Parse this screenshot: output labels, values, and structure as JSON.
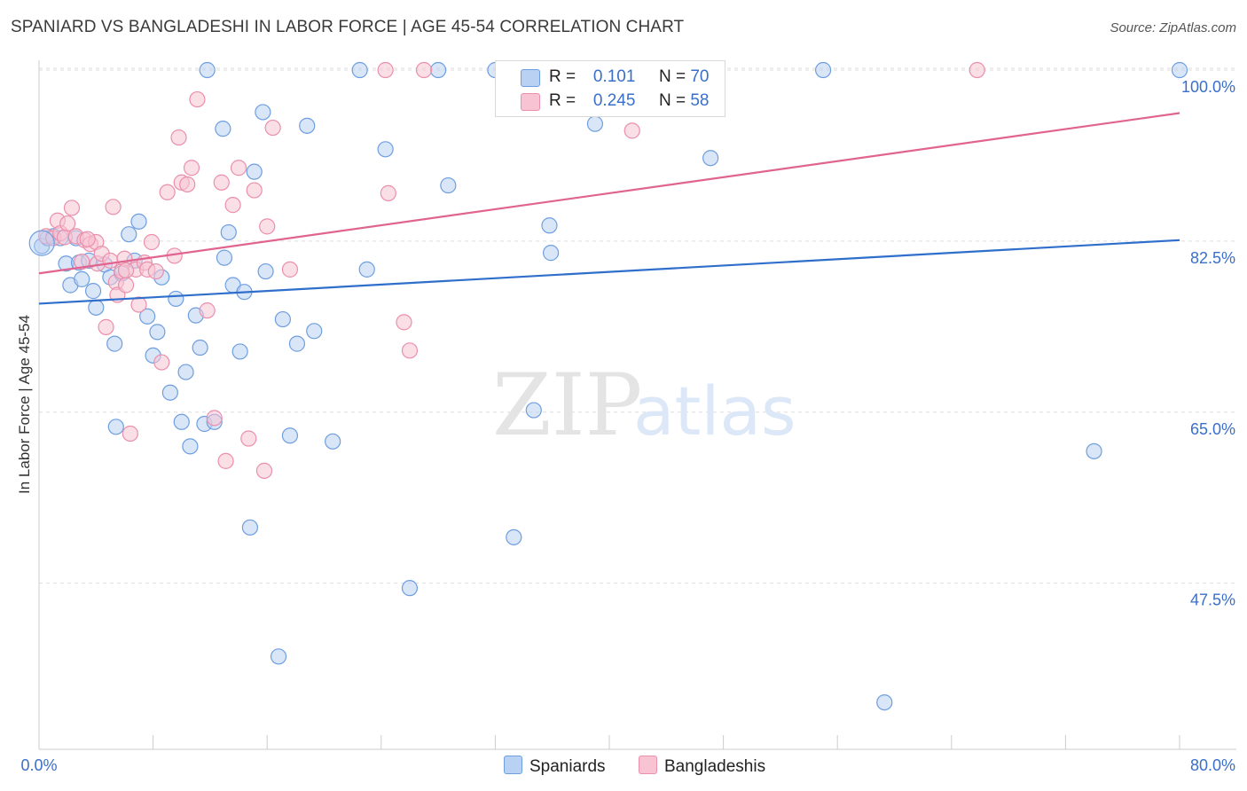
{
  "header": {
    "title": "SPANIARD VS BANGLADESHI IN LABOR FORCE | AGE 45-54 CORRELATION CHART",
    "source": "Source: ZipAtlas.com"
  },
  "watermark": {
    "zip": "ZIP",
    "atlas": "atlas"
  },
  "legend": {
    "r_label": "R =",
    "n_label": "N =",
    "rows": [
      {
        "r": "0.101",
        "n": "70"
      },
      {
        "r": "0.245",
        "n": "58"
      }
    ],
    "bottom": [
      "Spaniards",
      "Bangladeshis"
    ]
  },
  "colors": {
    "spaniards_fill": "#b9d1f3",
    "spaniards_stroke": "#6e9ee0",
    "spaniards_line": "#2f6fcb",
    "bangladeshis_fill": "#f8c4d4",
    "bangladeshis_stroke": "#ea8fac",
    "bangladeshis_line": "#e0648f",
    "tick_label": "#3a6fc9",
    "grid": "#dddddd"
  },
  "chart_data": {
    "type": "scatter",
    "title": "SPANIARD VS BANGLADESHI IN LABOR FORCE | AGE 45-54 CORRELATION CHART",
    "xlabel": "",
    "ylabel": "In Labor Force | Age 45-54",
    "xlim": [
      0,
      80
    ],
    "ylim": [
      30.5,
      101
    ],
    "x_tick_labels": [
      "0.0%",
      "80.0%"
    ],
    "y_ticks": [
      47.5,
      65.0,
      82.5,
      100.0
    ],
    "y_tick_labels": [
      "47.5%",
      "65.0%",
      "82.5%",
      "100.0%"
    ],
    "grid": true,
    "legend_position": "top-center",
    "series": [
      {
        "name": "Spaniards",
        "r": 0.101,
        "n": 70,
        "trend": {
          "x": [
            0,
            80
          ],
          "y": [
            76.1,
            82.6
          ]
        },
        "points": [
          [
            0.2,
            82.0
          ],
          [
            1.0,
            83.0
          ],
          [
            1.5,
            82.8
          ],
          [
            1.9,
            80.2
          ],
          [
            2.2,
            78.0
          ],
          [
            2.8,
            80.3
          ],
          [
            3.0,
            78.6
          ],
          [
            3.5,
            80.5
          ],
          [
            3.8,
            77.4
          ],
          [
            4.0,
            75.7
          ],
          [
            4.6,
            80.1
          ],
          [
            5.0,
            78.8
          ],
          [
            5.3,
            72.0
          ],
          [
            5.4,
            63.5
          ],
          [
            5.8,
            79.2
          ],
          [
            6.3,
            83.2
          ],
          [
            6.7,
            80.5
          ],
          [
            7.0,
            84.5
          ],
          [
            7.6,
            74.8
          ],
          [
            8.0,
            70.8
          ],
          [
            8.3,
            73.2
          ],
          [
            8.6,
            78.8
          ],
          [
            9.2,
            67.0
          ],
          [
            9.6,
            76.6
          ],
          [
            10.0,
            64.0
          ],
          [
            10.3,
            69.1
          ],
          [
            10.6,
            61.5
          ],
          [
            11.0,
            74.9
          ],
          [
            11.3,
            71.6
          ],
          [
            11.6,
            63.8
          ],
          [
            11.8,
            100.0
          ],
          [
            12.3,
            64.0
          ],
          [
            12.9,
            94.0
          ],
          [
            13.0,
            80.8
          ],
          [
            13.3,
            83.4
          ],
          [
            13.6,
            78.0
          ],
          [
            14.1,
            71.2
          ],
          [
            14.4,
            77.3
          ],
          [
            14.8,
            53.2
          ],
          [
            15.1,
            89.6
          ],
          [
            15.7,
            95.7
          ],
          [
            15.9,
            79.4
          ],
          [
            16.8,
            40.0
          ],
          [
            17.1,
            74.5
          ],
          [
            17.6,
            62.6
          ],
          [
            18.1,
            72.0
          ],
          [
            18.8,
            94.3
          ],
          [
            19.3,
            73.3
          ],
          [
            20.6,
            62.0
          ],
          [
            22.5,
            100.0
          ],
          [
            23.0,
            79.6
          ],
          [
            24.3,
            91.9
          ],
          [
            26.0,
            47.0
          ],
          [
            28.0,
            100.0
          ],
          [
            28.7,
            88.2
          ],
          [
            32.0,
            100.0
          ],
          [
            33.3,
            52.2
          ],
          [
            34.7,
            65.2
          ],
          [
            35.8,
            84.1
          ],
          [
            35.9,
            81.3
          ],
          [
            38.2,
            100.0
          ],
          [
            39.0,
            94.5
          ],
          [
            41.2,
            100.0
          ],
          [
            47.1,
            91.0
          ],
          [
            55.0,
            100.0
          ],
          [
            59.3,
            35.3
          ],
          [
            74.0,
            61.0
          ],
          [
            80.0,
            100.0
          ],
          [
            0.6,
            82.8
          ],
          [
            2.6,
            82.8
          ]
        ]
      },
      {
        "name": "Bangladeshis",
        "r": 0.245,
        "n": 58,
        "trend": {
          "x": [
            0,
            80
          ],
          "y": [
            79.2,
            95.6
          ]
        },
        "points": [
          [
            0.5,
            83.0
          ],
          [
            1.0,
            82.8
          ],
          [
            1.3,
            84.6
          ],
          [
            1.5,
            83.3
          ],
          [
            1.8,
            82.9
          ],
          [
            2.0,
            84.3
          ],
          [
            2.3,
            85.9
          ],
          [
            2.6,
            83.0
          ],
          [
            3.0,
            80.4
          ],
          [
            3.2,
            82.6
          ],
          [
            3.6,
            82.2
          ],
          [
            4.0,
            82.4
          ],
          [
            4.1,
            80.2
          ],
          [
            4.4,
            81.2
          ],
          [
            4.7,
            73.7
          ],
          [
            5.0,
            80.5
          ],
          [
            5.2,
            86.0
          ],
          [
            5.4,
            78.3
          ],
          [
            5.5,
            77.0
          ],
          [
            5.8,
            79.4
          ],
          [
            6.0,
            80.7
          ],
          [
            6.1,
            78.0
          ],
          [
            6.4,
            62.8
          ],
          [
            6.8,
            79.6
          ],
          [
            7.0,
            76.0
          ],
          [
            7.4,
            80.3
          ],
          [
            7.6,
            79.6
          ],
          [
            7.9,
            82.4
          ],
          [
            8.2,
            79.4
          ],
          [
            8.6,
            70.1
          ],
          [
            9.0,
            87.5
          ],
          [
            9.5,
            81.0
          ],
          [
            9.8,
            93.1
          ],
          [
            10.0,
            88.5
          ],
          [
            10.4,
            88.3
          ],
          [
            10.7,
            90.0
          ],
          [
            11.1,
            97.0
          ],
          [
            11.8,
            75.4
          ],
          [
            12.3,
            64.4
          ],
          [
            12.8,
            88.5
          ],
          [
            13.1,
            60.0
          ],
          [
            13.6,
            86.2
          ],
          [
            14.0,
            90.0
          ],
          [
            14.7,
            62.3
          ],
          [
            15.1,
            87.7
          ],
          [
            15.8,
            59.0
          ],
          [
            16.0,
            84.0
          ],
          [
            16.4,
            94.1
          ],
          [
            17.6,
            79.6
          ],
          [
            24.3,
            100.0
          ],
          [
            24.5,
            87.4
          ],
          [
            25.6,
            74.2
          ],
          [
            26.0,
            71.3
          ],
          [
            27.0,
            100.0
          ],
          [
            41.6,
            93.8
          ],
          [
            65.8,
            100.0
          ],
          [
            6.1,
            79.5
          ],
          [
            3.4,
            82.7
          ]
        ]
      }
    ]
  }
}
